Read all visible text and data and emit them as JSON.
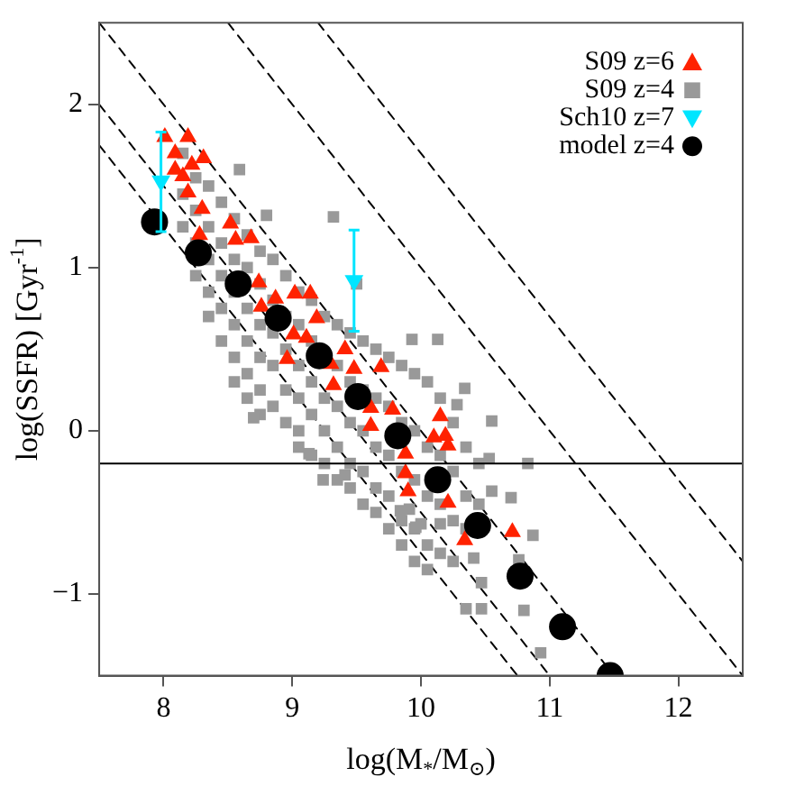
{
  "chart_data": {
    "type": "scatter",
    "xlabel": "log(M$_{*}$/M$_{⊙}$)",
    "ylabel": "log(SSFR) [Gyr$^{-1}$]",
    "xlim": [
      7.5,
      12.5
    ],
    "xticks": [
      8,
      9,
      10,
      11,
      12
    ],
    "ylim": [
      -1.5,
      2.5
    ],
    "yticks": [
      -1,
      0,
      1,
      2
    ],
    "legend": "top right",
    "ref_lines": [
      {
        "axis": "y",
        "value": -0.2,
        "color": "#000000",
        "line_style": "solid"
      }
    ],
    "series": [
      {
        "type": "line",
        "color": "#000000",
        "line_style": "dashed",
        "marker": "none",
        "x": [
          7.5,
          10.75
        ],
        "values": [
          1.75,
          -1.5
        ]
      },
      {
        "type": "line",
        "color": "#000000",
        "line_style": "dashed",
        "marker": "none",
        "x": [
          7.5,
          11.0
        ],
        "values": [
          2.0,
          -1.5
        ]
      },
      {
        "type": "line",
        "color": "#000000",
        "line_style": "dashed",
        "marker": "none",
        "x": [
          7.5,
          11.5
        ],
        "values": [
          2.5,
          -1.5
        ]
      },
      {
        "type": "line",
        "color": "#000000",
        "line_style": "dashed",
        "marker": "none",
        "x": [
          8.5,
          12.5
        ],
        "values": [
          2.5,
          -1.5
        ]
      },
      {
        "type": "line",
        "color": "#000000",
        "line_style": "dashed",
        "marker": "none",
        "x": [
          9.2,
          12.5
        ],
        "values": [
          2.5,
          -0.8
        ]
      },
      {
        "name": "S09 z=6",
        "color": "#ff2200",
        "marker": "triangle",
        "x": [
          8.01,
          8.19,
          8.09,
          8.22,
          8.31,
          8.09,
          8.15,
          8.19,
          8.3,
          8.52,
          8.28,
          8.56,
          8.68,
          8.74,
          8.87,
          9.02,
          9.14,
          8.76,
          9.19,
          9.01,
          9.11,
          9.41,
          8.96,
          9.3,
          9.48,
          9.69,
          9.32,
          9.61,
          9.78,
          9.61,
          9.88,
          9.88,
          9.9,
          10.15,
          10.1,
          10.19,
          10.21,
          10.21,
          10.34,
          10.71
        ],
        "values": [
          1.8,
          1.8,
          1.7,
          1.63,
          1.67,
          1.6,
          1.56,
          1.46,
          1.36,
          1.27,
          1.2,
          1.17,
          1.18,
          0.91,
          0.81,
          0.84,
          0.84,
          0.76,
          0.69,
          0.59,
          0.57,
          0.5,
          0.44,
          0.41,
          0.38,
          0.39,
          0.28,
          0.14,
          0.13,
          0.03,
          -0.14,
          -0.26,
          -0.37,
          0.09,
          -0.04,
          -0.03,
          -0.09,
          -0.44,
          -0.67,
          -0.62
        ]
      },
      {
        "name": "S09 z=4",
        "color": "#999999",
        "marker": "square",
        "x": [
          8.15,
          8.15,
          8.15,
          8.25,
          8.25,
          8.25,
          8.25,
          8.35,
          8.35,
          8.35,
          8.35,
          8.35,
          8.45,
          8.45,
          8.45,
          8.45,
          8.45,
          8.55,
          8.55,
          8.55,
          8.55,
          8.55,
          8.55,
          8.65,
          8.65,
          8.65,
          8.65,
          8.65,
          8.65,
          8.75,
          8.75,
          8.75,
          8.75,
          8.75,
          8.75,
          8.85,
          8.85,
          8.85,
          8.85,
          8.85,
          8.95,
          8.95,
          8.95,
          8.95,
          8.95,
          9.05,
          9.05,
          9.05,
          9.05,
          9.05,
          9.05,
          9.15,
          9.15,
          9.15,
          9.15,
          9.15,
          9.25,
          9.25,
          9.25,
          9.25,
          9.35,
          9.35,
          9.35,
          9.35,
          9.35,
          9.45,
          9.45,
          9.45,
          9.45,
          9.45,
          9.55,
          9.55,
          9.55,
          9.55,
          9.55,
          9.65,
          9.65,
          9.65,
          9.65,
          9.65,
          9.75,
          9.75,
          9.75,
          9.75,
          9.75,
          9.85,
          9.85,
          9.85,
          9.85,
          9.85,
          9.95,
          9.95,
          9.95,
          9.95,
          9.95,
          10.05,
          10.05,
          10.05,
          10.05,
          10.05,
          10.15,
          10.15,
          10.15,
          10.15,
          10.25,
          10.25,
          10.25,
          10.25,
          10.35,
          10.35,
          10.35,
          10.45,
          10.45,
          8.59,
          8.8,
          9.32,
          9.5,
          10.13,
          9.93,
          10.83,
          10.7,
          10.55,
          10.53,
          10.55,
          10.34,
          10.28,
          10.41,
          10.47,
          10.35,
          10.47,
          10.8,
          10.76,
          10.87,
          10.93,
          10.15,
          10.0,
          9.91,
          8.7,
          9.24,
          9.41,
          9.13,
          9.96,
          9.84
        ],
        "values": [
          1.7,
          1.45,
          1.25,
          1.55,
          1.35,
          1.15,
          0.95,
          1.5,
          1.25,
          1.05,
          0.85,
          0.7,
          1.4,
          1.15,
          0.95,
          0.75,
          0.55,
          1.3,
          1.05,
          0.85,
          0.65,
          0.45,
          0.3,
          1.2,
          1.0,
          0.75,
          0.55,
          0.35,
          0.2,
          1.1,
          0.9,
          0.65,
          0.45,
          0.25,
          0.1,
          1.05,
          0.8,
          0.6,
          0.4,
          0.15,
          0.95,
          0.7,
          0.5,
          0.25,
          0.05,
          0.85,
          0.65,
          0.4,
          0.2,
          0.0,
          -0.1,
          0.8,
          0.55,
          0.3,
          0.1,
          -0.15,
          0.7,
          0.2,
          0.0,
          -0.2,
          0.65,
          0.4,
          0.15,
          -0.1,
          -0.3,
          0.6,
          0.3,
          0.05,
          -0.2,
          -0.35,
          0.55,
          0.25,
          0.0,
          -0.25,
          -0.45,
          0.5,
          0.2,
          -0.1,
          -0.35,
          -0.5,
          0.45,
          0.15,
          -0.15,
          -0.4,
          -0.6,
          0.4,
          0.05,
          -0.25,
          -0.55,
          -0.7,
          0.35,
          0.0,
          -0.3,
          -0.6,
          -0.8,
          0.3,
          -0.1,
          -0.4,
          -0.7,
          -0.85,
          0.2,
          -0.15,
          -0.45,
          -0.75,
          0.05,
          -0.25,
          -0.55,
          -0.8,
          -0.1,
          -0.4,
          -0.6,
          -0.2,
          -0.45,
          1.6,
          1.32,
          1.31,
          0.9,
          0.56,
          0.56,
          -0.2,
          -0.41,
          -0.37,
          -0.17,
          0.06,
          0.26,
          0.16,
          -0.78,
          -0.93,
          -1.09,
          -1.09,
          -1.1,
          -0.79,
          -0.64,
          -1.36,
          -0.57,
          -0.57,
          -0.48,
          0.08,
          -0.3,
          -0.27,
          -0.14,
          -0.59,
          -0.49
        ]
      },
      {
        "name": "Sch10 z=7",
        "color": "#00e5ff",
        "marker": "triangle_down",
        "x": [
          7.98,
          9.48
        ],
        "values": [
          1.53,
          0.92
        ],
        "errors": [
          [
            1.22,
            1.83
          ],
          [
            0.61,
            1.23
          ]
        ]
      },
      {
        "name": "model z=4",
        "color": "#000000",
        "marker": "circle",
        "x": [
          7.93,
          8.27,
          8.58,
          8.89,
          9.21,
          9.51,
          9.82,
          10.13,
          10.44,
          10.77,
          11.1,
          11.47
        ],
        "values": [
          1.28,
          1.09,
          0.9,
          0.69,
          0.46,
          0.21,
          -0.03,
          -0.3,
          -0.58,
          -0.89,
          -1.2,
          -1.5
        ]
      }
    ]
  }
}
